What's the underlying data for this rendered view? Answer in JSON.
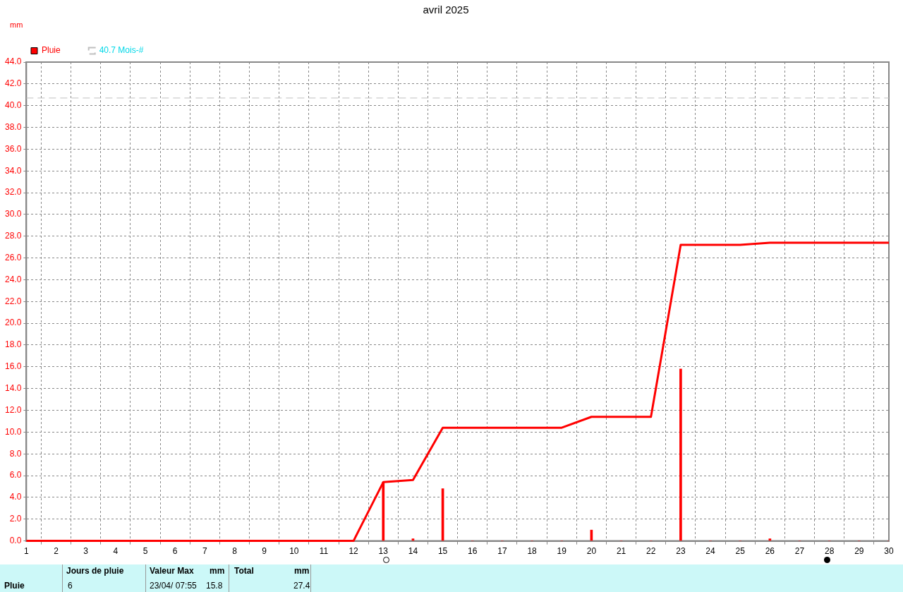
{
  "chart_data": {
    "type": "bar",
    "title": "avril 2025",
    "ylabel": "mm",
    "x": [
      1,
      2,
      3,
      4,
      5,
      6,
      7,
      8,
      9,
      10,
      11,
      12,
      13,
      14,
      15,
      16,
      17,
      18,
      19,
      20,
      21,
      22,
      23,
      24,
      25,
      26,
      27,
      28,
      29,
      30
    ],
    "series": [
      {
        "name": "Pluie",
        "color": "#ff0000",
        "values": [
          0,
          0,
          0,
          0,
          0,
          0,
          0,
          0,
          0,
          0,
          0,
          0,
          5.4,
          0.2,
          4.8,
          0,
          0,
          0,
          0,
          1.0,
          0,
          0,
          15.8,
          0,
          0,
          0.2,
          0,
          0,
          0,
          0
        ]
      },
      {
        "type": "line",
        "color": "#ff0000",
        "values": [
          0,
          0,
          0,
          0,
          0,
          0,
          0,
          0,
          0,
          0,
          0,
          0,
          5.4,
          5.6,
          10.4,
          10.4,
          10.4,
          10.4,
          10.4,
          11.4,
          11.4,
          11.4,
          27.2,
          27.2,
          27.2,
          27.4,
          27.4,
          27.4,
          27.4,
          27.4
        ]
      }
    ],
    "xlim": [
      1,
      30
    ],
    "xticks": [
      1,
      2,
      3,
      4,
      5,
      6,
      7,
      8,
      9,
      10,
      11,
      12,
      13,
      14,
      15,
      16,
      17,
      18,
      19,
      20,
      21,
      22,
      23,
      24,
      25,
      26,
      27,
      28,
      29,
      30
    ],
    "ylim": [
      0,
      44
    ],
    "yticks": [
      {
        "value": 0,
        "label": "0.0"
      },
      {
        "value": 2,
        "label": "2.0"
      },
      {
        "value": 4,
        "label": "4.0"
      },
      {
        "value": 6,
        "label": "6.0"
      },
      {
        "value": 8,
        "label": "8.0"
      },
      {
        "value": 10,
        "label": "10.0"
      },
      {
        "value": 12,
        "label": "12.0"
      },
      {
        "value": 14,
        "label": "14.0"
      },
      {
        "value": 16,
        "label": "16.0"
      },
      {
        "value": 18,
        "label": "18.0"
      },
      {
        "value": 20,
        "label": "20.0"
      },
      {
        "value": 22,
        "label": "22.0"
      },
      {
        "value": 24,
        "label": "24.0"
      },
      {
        "value": 26,
        "label": "26.0"
      },
      {
        "value": 28,
        "label": "28.0"
      },
      {
        "value": 30,
        "label": "30.0"
      },
      {
        "value": 32,
        "label": "32.0"
      },
      {
        "value": 34,
        "label": "34.0"
      },
      {
        "value": 36,
        "label": "36.0"
      },
      {
        "value": 38,
        "label": "38.0"
      },
      {
        "value": 40,
        "label": "40.0"
      },
      {
        "value": 42,
        "label": "42.0"
      },
      {
        "value": 44,
        "label": "44.0"
      }
    ],
    "ref_lines": [
      {
        "axis": "y",
        "value": 40.7,
        "label": "40.7 Mois-#",
        "color": "#c0c0c0",
        "line_style": "dashed"
      }
    ],
    "grid": true,
    "legend": "top left",
    "marker": "none",
    "line_style": "solid",
    "annotations": [
      "Pluie",
      "Jours de pluie",
      "6",
      "Valeur Max",
      "mm",
      "23/04/ 07:55",
      "15.8",
      "Total",
      "mm",
      "27.4"
    ]
  }
}
